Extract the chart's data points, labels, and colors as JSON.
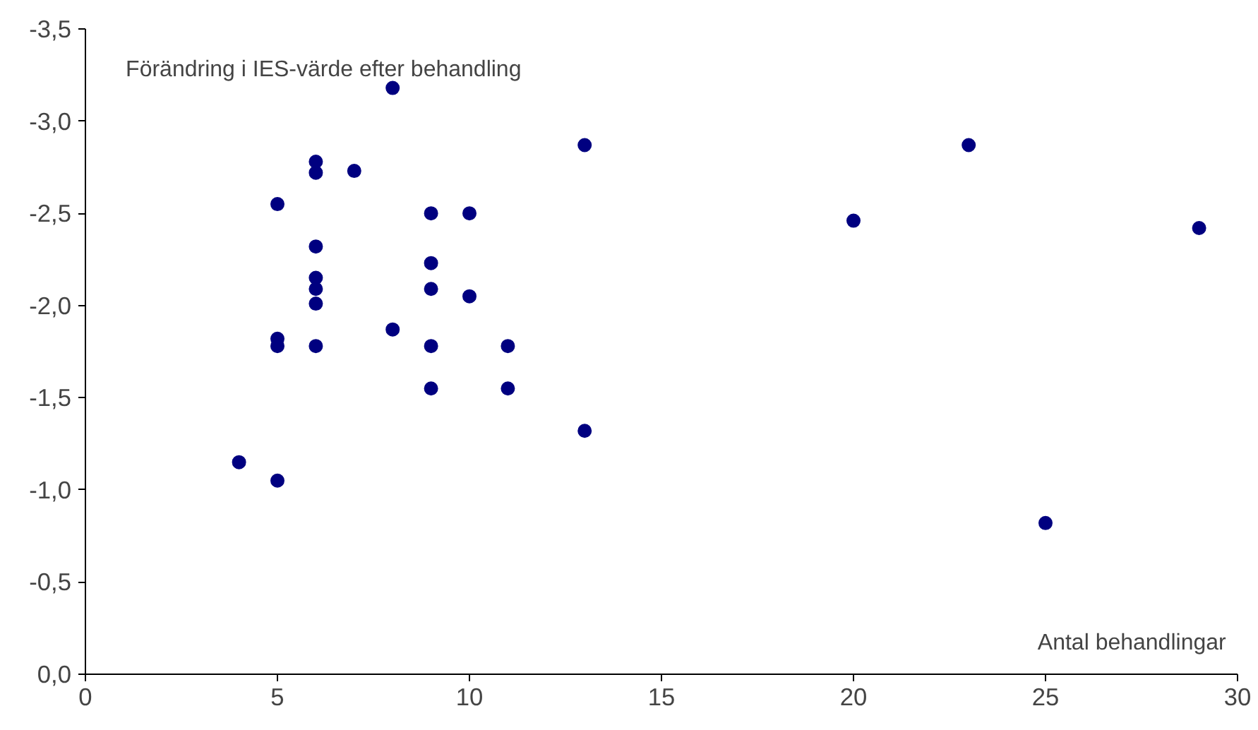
{
  "chart_data": {
    "type": "scatter",
    "ylabel": "Förändring i IES-värde efter behandling",
    "xlabel": "Antal behandlingar",
    "x": [
      4,
      5,
      5,
      5,
      5,
      6,
      6,
      6,
      6,
      6,
      6,
      6,
      7,
      8,
      8,
      9,
      9,
      9,
      9,
      9,
      10,
      10,
      11,
      11,
      13,
      13,
      20,
      23,
      25,
      29
    ],
    "series": [
      {
        "color": "#000080",
        "values": [
          -1.15,
          -1.05,
          -2.55,
          -1.82,
          -1.78,
          -2.78,
          -2.72,
          -2.32,
          -2.15,
          -2.09,
          -2.01,
          -1.78,
          -2.73,
          -3.18,
          -1.87,
          -2.5,
          -2.23,
          -2.09,
          -1.78,
          -1.55,
          -2.5,
          -2.05,
          -1.78,
          -1.55,
          -2.87,
          -1.32,
          -2.46,
          -2.87,
          -0.82,
          -2.42
        ]
      }
    ],
    "xlim": [
      0,
      30
    ],
    "xticks": [
      0,
      5,
      10,
      15,
      20,
      25,
      30
    ],
    "ylim": [
      0,
      -3.5
    ],
    "yticks": [
      {
        "value": 0,
        "label": "0,0"
      },
      {
        "value": -0.5,
        "label": "-0,5"
      },
      {
        "value": -1,
        "label": "-1,0"
      },
      {
        "value": -1.5,
        "label": "-1,5"
      },
      {
        "value": -2,
        "label": "-2,0"
      },
      {
        "value": -2.5,
        "label": "-2,5"
      },
      {
        "value": -3,
        "label": "-3,0"
      },
      {
        "value": -3.5,
        "label": "-3,5"
      }
    ],
    "marker": "circle"
  }
}
